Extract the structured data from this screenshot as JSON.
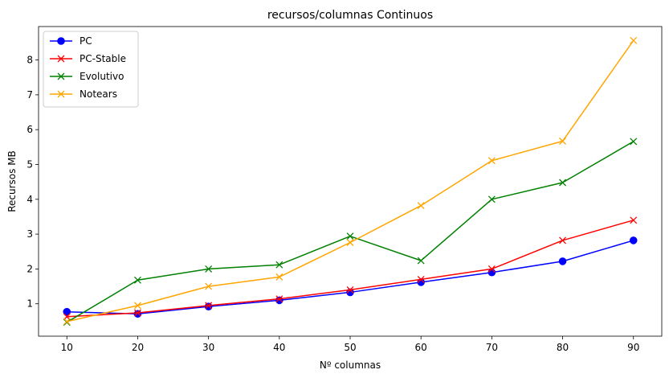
{
  "chart_data": {
    "type": "line",
    "title": "recursos/columnas Continuos",
    "xlabel": "Nº columnas",
    "ylabel": "Recursos MB",
    "x": [
      10,
      20,
      30,
      40,
      50,
      60,
      70,
      80,
      90
    ],
    "xticks": [
      10,
      20,
      30,
      40,
      50,
      60,
      70,
      80,
      90
    ],
    "yticks": [
      1,
      2,
      3,
      4,
      5,
      6,
      7,
      8
    ],
    "xlim": [
      6,
      94
    ],
    "ylim": [
      0.07,
      8.96
    ],
    "grid": false,
    "legend_position": "upper-left",
    "series": [
      {
        "name": "PC",
        "color": "#0000ff",
        "marker": "circle",
        "values": [
          0.77,
          0.71,
          0.92,
          1.1,
          1.33,
          1.62,
          1.9,
          2.22,
          2.82
        ]
      },
      {
        "name": "PC-Stable",
        "color": "#ff0000",
        "marker": "x",
        "values": [
          0.63,
          0.74,
          0.95,
          1.14,
          1.4,
          1.7,
          2.0,
          2.82,
          3.4
        ]
      },
      {
        "name": "Evolutivo",
        "color": "#008000",
        "marker": "x",
        "values": [
          0.47,
          1.68,
          2.0,
          2.12,
          2.94,
          2.24,
          4.0,
          4.48,
          5.66
        ]
      },
      {
        "name": "Notears",
        "color": "#ffa500",
        "marker": "x",
        "values": [
          0.49,
          0.95,
          1.5,
          1.77,
          2.76,
          3.82,
          5.11,
          5.67,
          8.56
        ]
      }
    ]
  }
}
